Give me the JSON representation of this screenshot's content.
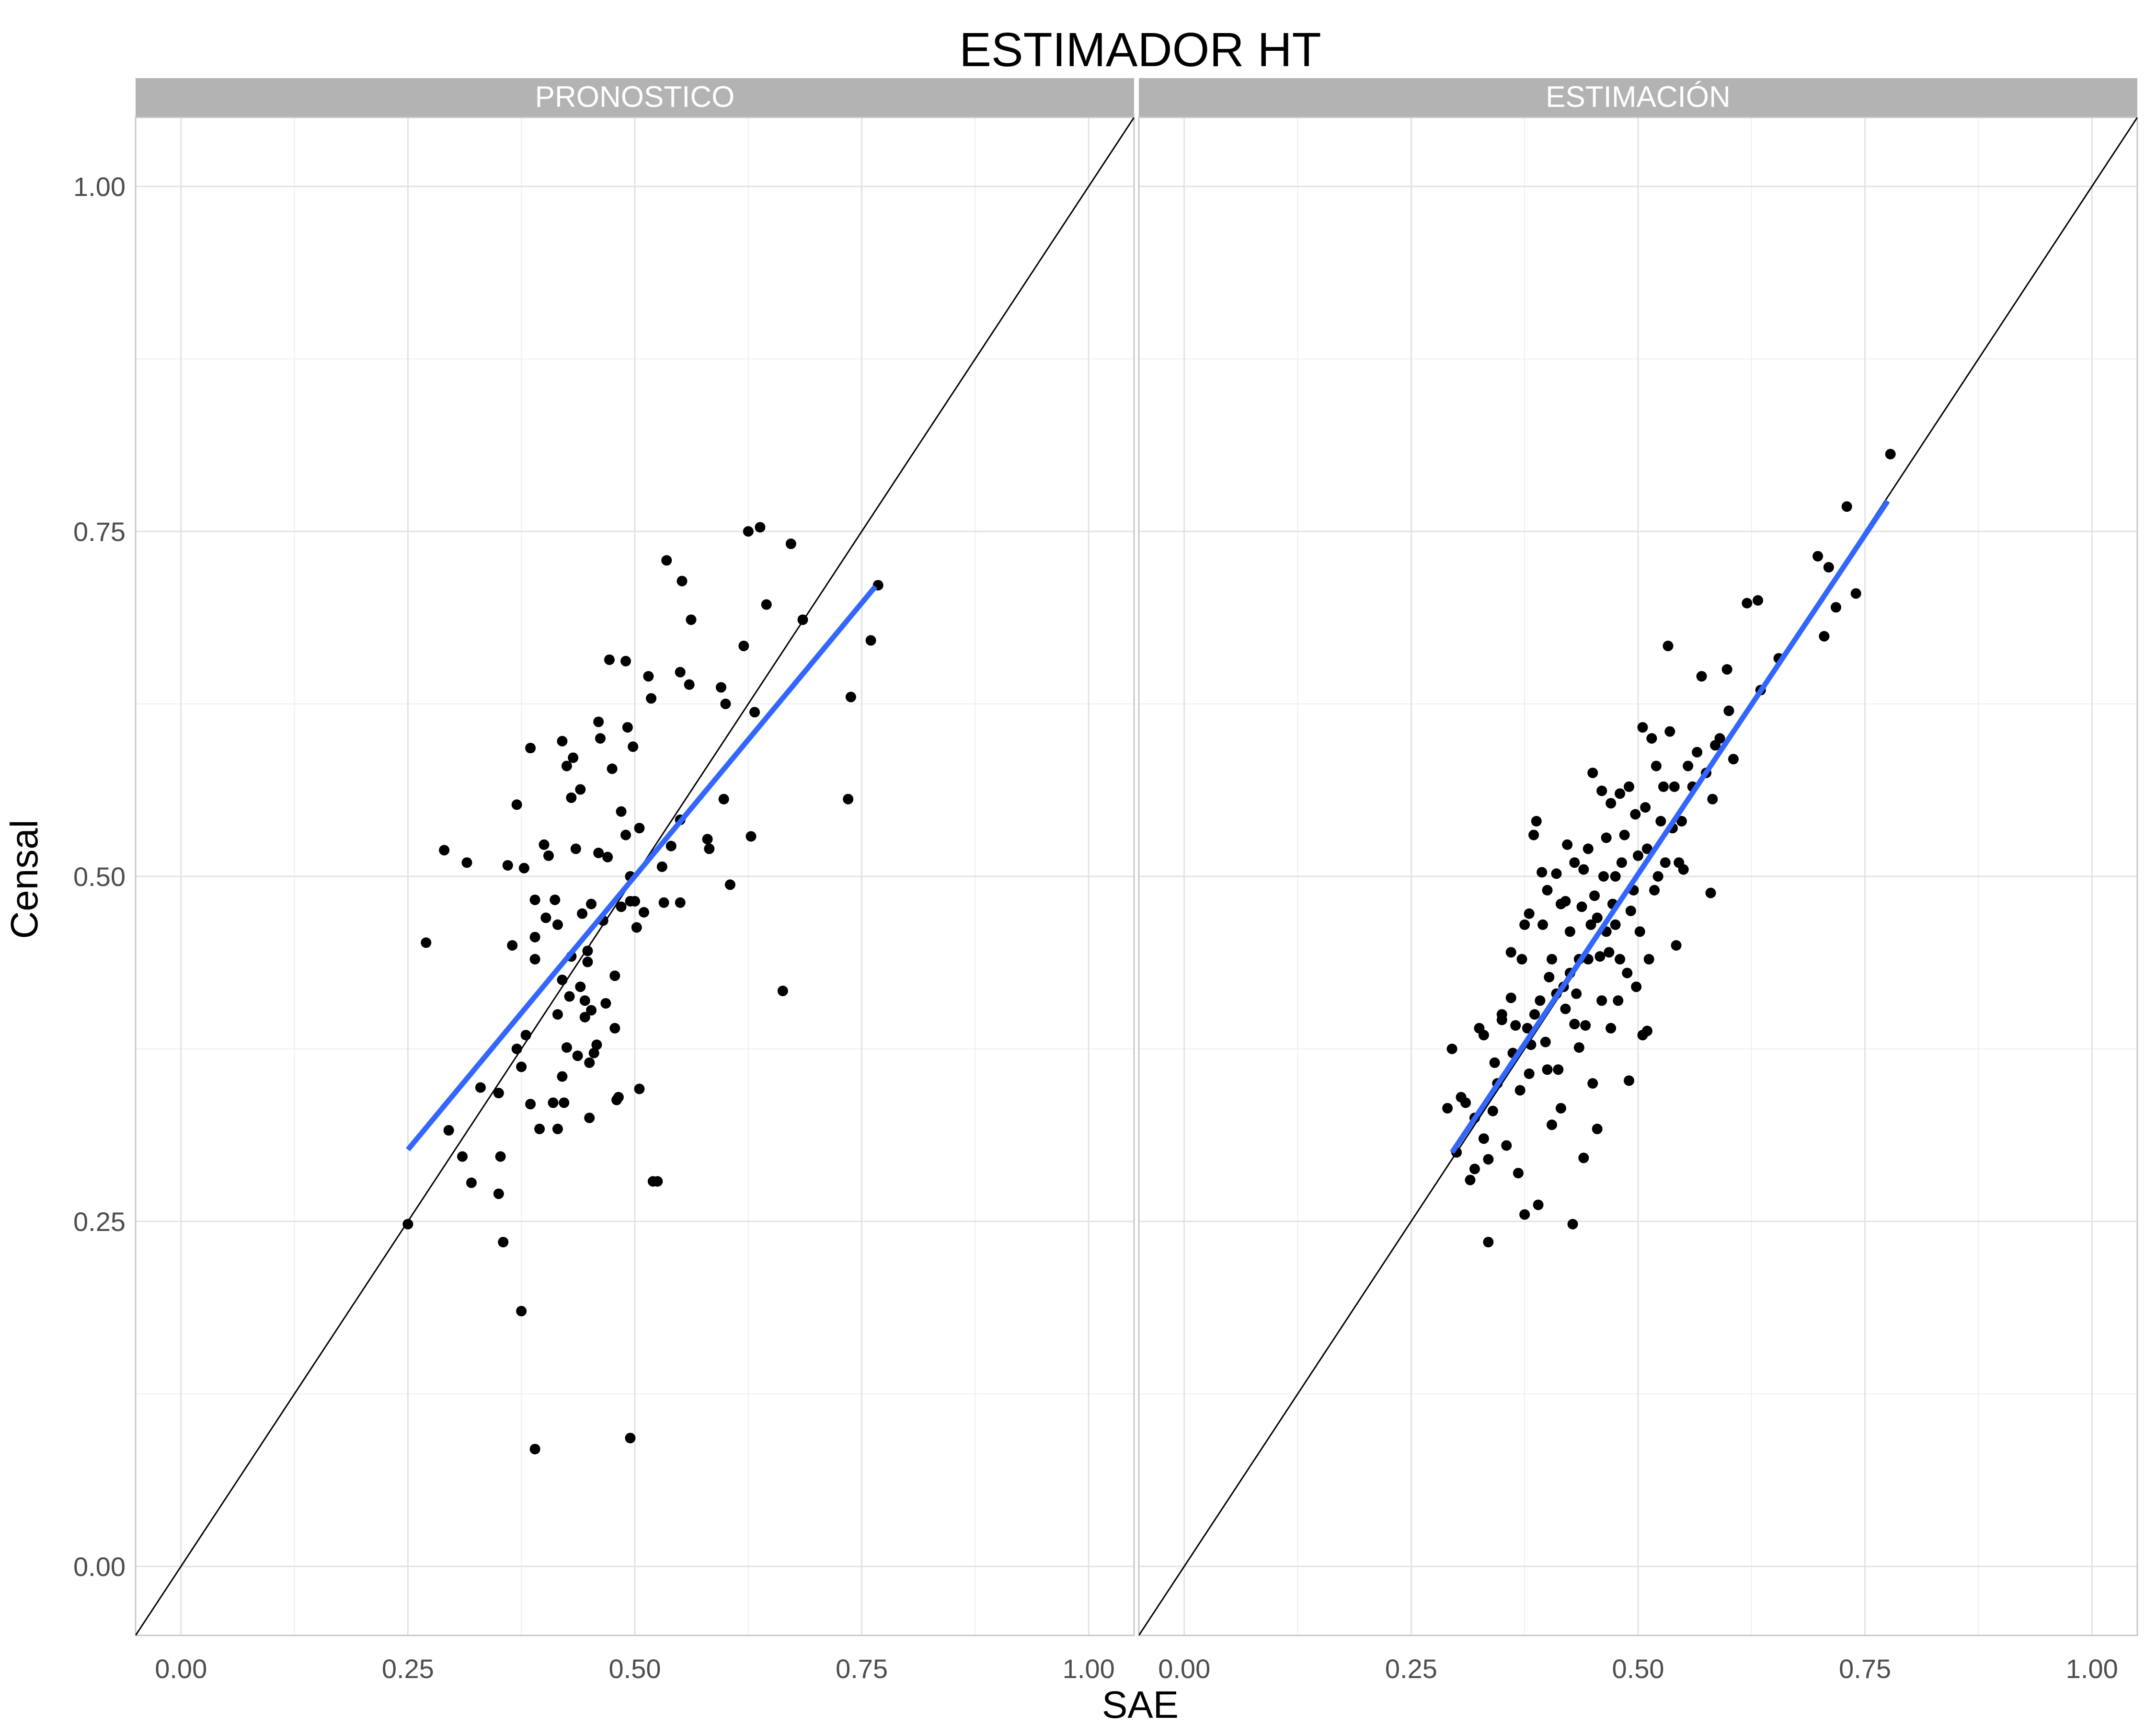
{
  "title": "ESTIMADOR HT",
  "xlabel": "SAE",
  "ylabel": "Censal",
  "chart_data": [
    {
      "type": "scatter",
      "panel": "PRONOSTICO",
      "xlim": [
        -0.05,
        1.05
      ],
      "ylim": [
        -0.05,
        1.05
      ],
      "xticks": [
        "0.00",
        "0.25",
        "0.50",
        "0.75",
        "1.00"
      ],
      "yticks": [
        "0.00",
        "0.25",
        "0.50",
        "0.75",
        "1.00"
      ],
      "identity_line": true,
      "fit_line": {
        "x": [
          0.25,
          0.765
        ],
        "y": [
          0.302,
          0.71
        ]
      },
      "points": [
        [
          0.25,
          0.248
        ],
        [
          0.27,
          0.452
        ],
        [
          0.29,
          0.519
        ],
        [
          0.295,
          0.316
        ],
        [
          0.31,
          0.297
        ],
        [
          0.315,
          0.51
        ],
        [
          0.32,
          0.278
        ],
        [
          0.33,
          0.347
        ],
        [
          0.35,
          0.343
        ],
        [
          0.35,
          0.27
        ],
        [
          0.352,
          0.297
        ],
        [
          0.355,
          0.235
        ],
        [
          0.36,
          0.508
        ],
        [
          0.365,
          0.45
        ],
        [
          0.37,
          0.552
        ],
        [
          0.37,
          0.375
        ],
        [
          0.375,
          0.362
        ],
        [
          0.375,
          0.185
        ],
        [
          0.378,
          0.506
        ],
        [
          0.38,
          0.385
        ],
        [
          0.385,
          0.593
        ],
        [
          0.385,
          0.335
        ],
        [
          0.39,
          0.483
        ],
        [
          0.39,
          0.456
        ],
        [
          0.39,
          0.44
        ],
        [
          0.39,
          0.085
        ],
        [
          0.395,
          0.317
        ],
        [
          0.4,
          0.523
        ],
        [
          0.402,
          0.47
        ],
        [
          0.405,
          0.515
        ],
        [
          0.41,
          0.336
        ],
        [
          0.412,
          0.483
        ],
        [
          0.415,
          0.465
        ],
        [
          0.415,
          0.4
        ],
        [
          0.415,
          0.317
        ],
        [
          0.42,
          0.598
        ],
        [
          0.42,
          0.355
        ],
        [
          0.42,
          0.425
        ],
        [
          0.422,
          0.336
        ],
        [
          0.425,
          0.58
        ],
        [
          0.425,
          0.376
        ],
        [
          0.428,
          0.413
        ],
        [
          0.43,
          0.557
        ],
        [
          0.43,
          0.442
        ],
        [
          0.432,
          0.586
        ],
        [
          0.435,
          0.52
        ],
        [
          0.437,
          0.37
        ],
        [
          0.44,
          0.563
        ],
        [
          0.44,
          0.42
        ],
        [
          0.442,
          0.473
        ],
        [
          0.445,
          0.41
        ],
        [
          0.445,
          0.398
        ],
        [
          0.448,
          0.438
        ],
        [
          0.448,
          0.446
        ],
        [
          0.45,
          0.325
        ],
        [
          0.45,
          0.365
        ],
        [
          0.452,
          0.48
        ],
        [
          0.452,
          0.403
        ],
        [
          0.455,
          0.372
        ],
        [
          0.458,
          0.378
        ],
        [
          0.46,
          0.612
        ],
        [
          0.46,
          0.517
        ],
        [
          0.462,
          0.6
        ],
        [
          0.465,
          0.468
        ],
        [
          0.468,
          0.408
        ],
        [
          0.47,
          0.514
        ],
        [
          0.472,
          0.657
        ],
        [
          0.475,
          0.578
        ],
        [
          0.478,
          0.39
        ],
        [
          0.478,
          0.428
        ],
        [
          0.48,
          0.338
        ],
        [
          0.482,
          0.34
        ],
        [
          0.485,
          0.478
        ],
        [
          0.485,
          0.547
        ],
        [
          0.49,
          0.53
        ],
        [
          0.49,
          0.656
        ],
        [
          0.492,
          0.608
        ],
        [
          0.495,
          0.5
        ],
        [
          0.495,
          0.482
        ],
        [
          0.495,
          0.093
        ],
        [
          0.498,
          0.594
        ],
        [
          0.5,
          0.482
        ],
        [
          0.502,
          0.463
        ],
        [
          0.505,
          0.346
        ],
        [
          0.505,
          0.535
        ],
        [
          0.51,
          0.474
        ],
        [
          0.515,
          0.645
        ],
        [
          0.518,
          0.629
        ],
        [
          0.52,
          0.279
        ],
        [
          0.525,
          0.279
        ],
        [
          0.53,
          0.507
        ],
        [
          0.532,
          0.481
        ],
        [
          0.535,
          0.729
        ],
        [
          0.54,
          0.522
        ],
        [
          0.55,
          0.481
        ],
        [
          0.55,
          0.541
        ],
        [
          0.55,
          0.648
        ],
        [
          0.552,
          0.714
        ],
        [
          0.56,
          0.639
        ],
        [
          0.562,
          0.686
        ],
        [
          0.58,
          0.527
        ],
        [
          0.582,
          0.52
        ],
        [
          0.595,
          0.637
        ],
        [
          0.598,
          0.556
        ],
        [
          0.6,
          0.625
        ],
        [
          0.605,
          0.494
        ],
        [
          0.62,
          0.667
        ],
        [
          0.625,
          0.75
        ],
        [
          0.628,
          0.529
        ],
        [
          0.632,
          0.619
        ],
        [
          0.638,
          0.753
        ],
        [
          0.645,
          0.697
        ],
        [
          0.663,
          0.417
        ],
        [
          0.672,
          0.741
        ],
        [
          0.685,
          0.686
        ],
        [
          0.735,
          0.556
        ],
        [
          0.738,
          0.63
        ],
        [
          0.76,
          0.671
        ],
        [
          0.768,
          0.711
        ]
      ]
    },
    {
      "type": "scatter",
      "panel": "ESTIMACIÓN",
      "xlim": [
        -0.05,
        1.05
      ],
      "ylim": [
        -0.05,
        1.05
      ],
      "xticks": [
        "0.00",
        "0.25",
        "0.50",
        "0.75",
        "1.00"
      ],
      "yticks": [
        "0.00",
        "0.25",
        "0.50",
        "0.75",
        "1.00"
      ],
      "identity_line": true,
      "fit_line": {
        "x": [
          0.295,
          0.775
        ],
        "y": [
          0.3,
          0.772
        ]
      },
      "points": [
        [
          0.29,
          0.332
        ],
        [
          0.295,
          0.375
        ],
        [
          0.3,
          0.3
        ],
        [
          0.305,
          0.34
        ],
        [
          0.31,
          0.336
        ],
        [
          0.315,
          0.28
        ],
        [
          0.32,
          0.325
        ],
        [
          0.32,
          0.288
        ],
        [
          0.325,
          0.39
        ],
        [
          0.33,
          0.31
        ],
        [
          0.33,
          0.385
        ],
        [
          0.335,
          0.295
        ],
        [
          0.335,
          0.235
        ],
        [
          0.34,
          0.33
        ],
        [
          0.342,
          0.365
        ],
        [
          0.345,
          0.35
        ],
        [
          0.35,
          0.4
        ],
        [
          0.35,
          0.396
        ],
        [
          0.355,
          0.305
        ],
        [
          0.36,
          0.445
        ],
        [
          0.36,
          0.412
        ],
        [
          0.362,
          0.372
        ],
        [
          0.365,
          0.392
        ],
        [
          0.368,
          0.285
        ],
        [
          0.37,
          0.345
        ],
        [
          0.372,
          0.44
        ],
        [
          0.375,
          0.255
        ],
        [
          0.375,
          0.465
        ],
        [
          0.378,
          0.39
        ],
        [
          0.38,
          0.473
        ],
        [
          0.38,
          0.357
        ],
        [
          0.382,
          0.378
        ],
        [
          0.385,
          0.53
        ],
        [
          0.386,
          0.4
        ],
        [
          0.388,
          0.54
        ],
        [
          0.39,
          0.262
        ],
        [
          0.392,
          0.41
        ],
        [
          0.394,
          0.503
        ],
        [
          0.395,
          0.465
        ],
        [
          0.398,
          0.38
        ],
        [
          0.4,
          0.49
        ],
        [
          0.4,
          0.36
        ],
        [
          0.402,
          0.427
        ],
        [
          0.405,
          0.32
        ],
        [
          0.405,
          0.44
        ],
        [
          0.41,
          0.502
        ],
        [
          0.41,
          0.415
        ],
        [
          0.412,
          0.36
        ],
        [
          0.415,
          0.48
        ],
        [
          0.415,
          0.332
        ],
        [
          0.418,
          0.42
        ],
        [
          0.42,
          0.482
        ],
        [
          0.42,
          0.404
        ],
        [
          0.422,
          0.523
        ],
        [
          0.425,
          0.46
        ],
        [
          0.425,
          0.43
        ],
        [
          0.428,
          0.248
        ],
        [
          0.43,
          0.51
        ],
        [
          0.43,
          0.393
        ],
        [
          0.432,
          0.415
        ],
        [
          0.435,
          0.44
        ],
        [
          0.435,
          0.376
        ],
        [
          0.438,
          0.478
        ],
        [
          0.44,
          0.505
        ],
        [
          0.44,
          0.296
        ],
        [
          0.442,
          0.392
        ],
        [
          0.445,
          0.44
        ],
        [
          0.445,
          0.52
        ],
        [
          0.448,
          0.465
        ],
        [
          0.45,
          0.575
        ],
        [
          0.45,
          0.35
        ],
        [
          0.452,
          0.486
        ],
        [
          0.455,
          0.47
        ],
        [
          0.455,
          0.317
        ],
        [
          0.458,
          0.442
        ],
        [
          0.46,
          0.562
        ],
        [
          0.46,
          0.41
        ],
        [
          0.462,
          0.5
        ],
        [
          0.465,
          0.528
        ],
        [
          0.465,
          0.46
        ],
        [
          0.468,
          0.445
        ],
        [
          0.47,
          0.553
        ],
        [
          0.47,
          0.39
        ],
        [
          0.472,
          0.48
        ],
        [
          0.475,
          0.5
        ],
        [
          0.475,
          0.465
        ],
        [
          0.478,
          0.41
        ],
        [
          0.48,
          0.56
        ],
        [
          0.48,
          0.44
        ],
        [
          0.482,
          0.51
        ],
        [
          0.485,
          0.53
        ],
        [
          0.488,
          0.43
        ],
        [
          0.49,
          0.565
        ],
        [
          0.49,
          0.352
        ],
        [
          0.492,
          0.475
        ],
        [
          0.495,
          0.49
        ],
        [
          0.497,
          0.545
        ],
        [
          0.498,
          0.42
        ],
        [
          0.5,
          0.515
        ],
        [
          0.502,
          0.46
        ],
        [
          0.505,
          0.608
        ],
        [
          0.505,
          0.385
        ],
        [
          0.508,
          0.55
        ],
        [
          0.51,
          0.52
        ],
        [
          0.51,
          0.388
        ],
        [
          0.512,
          0.44
        ],
        [
          0.515,
          0.6
        ],
        [
          0.518,
          0.49
        ],
        [
          0.52,
          0.58
        ],
        [
          0.522,
          0.5
        ],
        [
          0.525,
          0.54
        ],
        [
          0.528,
          0.565
        ],
        [
          0.53,
          0.51
        ],
        [
          0.533,
          0.667
        ],
        [
          0.535,
          0.605
        ],
        [
          0.538,
          0.535
        ],
        [
          0.54,
          0.565
        ],
        [
          0.542,
          0.45
        ],
        [
          0.545,
          0.51
        ],
        [
          0.548,
          0.54
        ],
        [
          0.55,
          0.505
        ],
        [
          0.555,
          0.58
        ],
        [
          0.56,
          0.565
        ],
        [
          0.565,
          0.59
        ],
        [
          0.57,
          0.645
        ],
        [
          0.575,
          0.575
        ],
        [
          0.58,
          0.488
        ],
        [
          0.582,
          0.556
        ],
        [
          0.585,
          0.595
        ],
        [
          0.59,
          0.6
        ],
        [
          0.598,
          0.65
        ],
        [
          0.6,
          0.62
        ],
        [
          0.605,
          0.585
        ],
        [
          0.62,
          0.698
        ],
        [
          0.632,
          0.7
        ],
        [
          0.635,
          0.635
        ],
        [
          0.655,
          0.658
        ],
        [
          0.698,
          0.732
        ],
        [
          0.705,
          0.674
        ],
        [
          0.71,
          0.724
        ],
        [
          0.718,
          0.695
        ],
        [
          0.73,
          0.768
        ],
        [
          0.74,
          0.705
        ],
        [
          0.778,
          0.806
        ]
      ]
    }
  ]
}
